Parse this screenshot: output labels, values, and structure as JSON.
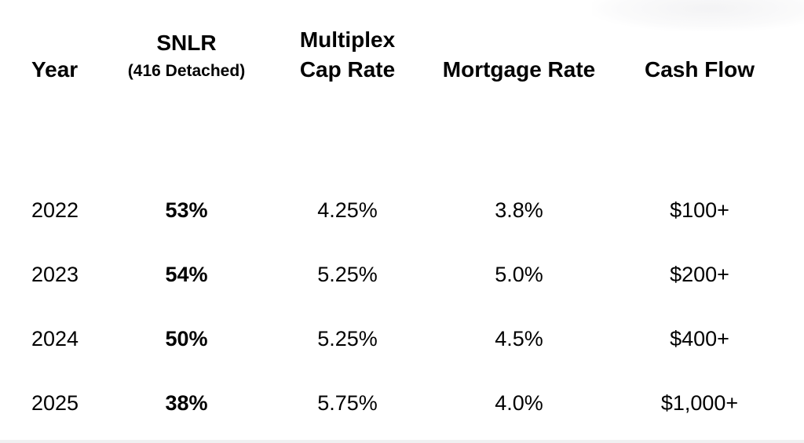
{
  "page": {
    "background_color": "#ffffff",
    "text_color": "#000000",
    "bottom_strip_color": "#f0f0f1"
  },
  "table": {
    "columns": [
      {
        "label": "Year"
      },
      {
        "label": "SNLR",
        "sublabel": "(416 Detached)"
      },
      {
        "label": "Multiplex",
        "label2": "Cap Rate"
      },
      {
        "label": "Mortgage Rate"
      },
      {
        "label": "Cash Flow"
      }
    ],
    "rows": [
      {
        "year": "2022",
        "snlr": "53%",
        "cap_rate": "4.25%",
        "mortgage_rate": "3.8%",
        "cash_flow": "$100+"
      },
      {
        "year": "2023",
        "snlr": "54%",
        "cap_rate": "5.25%",
        "mortgage_rate": "5.0%",
        "cash_flow": "$200+"
      },
      {
        "year": "2024",
        "snlr": "50%",
        "cap_rate": "5.25%",
        "mortgage_rate": "4.5%",
        "cash_flow": "$400+"
      },
      {
        "year": "2025",
        "snlr": "38%",
        "cap_rate": "5.75%",
        "mortgage_rate": "4.0%",
        "cash_flow": "$1,000+"
      }
    ]
  },
  "chart_data": {
    "type": "table",
    "columns": [
      "Year",
      "SNLR (416 Detached)",
      "Multiplex Cap Rate",
      "Mortgage Rate",
      "Cash Flow"
    ],
    "rows": [
      [
        "2022",
        "53%",
        "4.25%",
        "3.8%",
        "$100+"
      ],
      [
        "2023",
        "54%",
        "5.25%",
        "5.0%",
        "$200+"
      ],
      [
        "2024",
        "50%",
        "5.25%",
        "4.5%",
        "$400+"
      ],
      [
        "2025",
        "38%",
        "5.75%",
        "4.0%",
        "$1,000+"
      ]
    ],
    "notes": "SNLR column values rendered bold; no gridlines; white background"
  }
}
